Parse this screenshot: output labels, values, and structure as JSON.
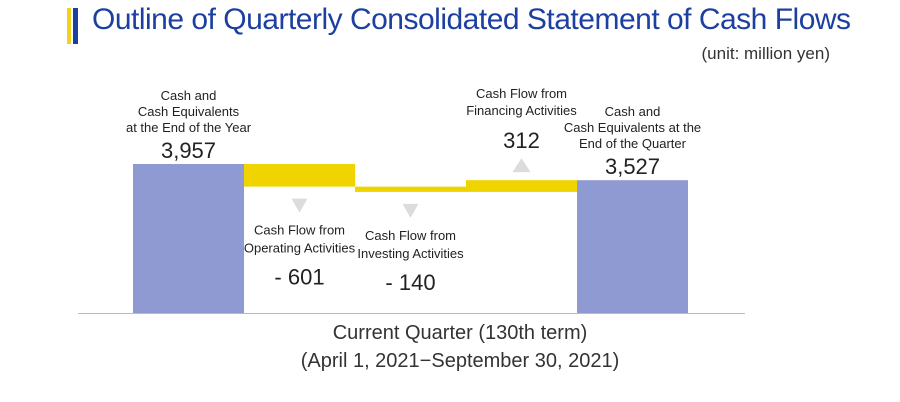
{
  "title": "Outline of Quarterly Consolidated Statement of Cash Flows",
  "unit": "(unit: million yen)",
  "caption": {
    "line1": "Current Quarter (130th term)",
    "line2": "(April 1, 2021−September 30, 2021)"
  },
  "colors": {
    "accent_blue": "#1c3fa0",
    "accent_yellow": "#f2d21a",
    "total_bar": "#8e9ad1",
    "flow_bar": "#efd400",
    "arrow": "#dcdcdc",
    "baseline": "#bbbbbb"
  },
  "chart_data": {
    "type": "bar",
    "subtype": "waterfall",
    "categories": [
      "Cash and Cash Equivalents at the End of the Year",
      "Cash Flow from Operating Activities",
      "Cash Flow from Investing Activities",
      "Cash Flow from Financing Activities",
      "Cash and Cash Equivalents at the End of the Quarter"
    ],
    "values": [
      3957,
      -601,
      -140,
      312,
      3527
    ],
    "value_labels": [
      "3,957",
      "- 601",
      "- 140",
      "312",
      "3,527"
    ],
    "label_lines": [
      [
        "Cash and",
        "Cash Equivalents",
        "at the End of the Year"
      ],
      [
        "Cash Flow from",
        "Operating Activities"
      ],
      [
        "Cash Flow from",
        "Investing Activities"
      ],
      [
        "Cash Flow from",
        "Financing Activities"
      ],
      [
        "Cash and",
        "Cash Equivalents at the",
        "End of the Quarter"
      ]
    ],
    "kinds": [
      "total",
      "flow",
      "flow",
      "flow",
      "total"
    ],
    "ylim": [
      0,
      4000
    ]
  }
}
